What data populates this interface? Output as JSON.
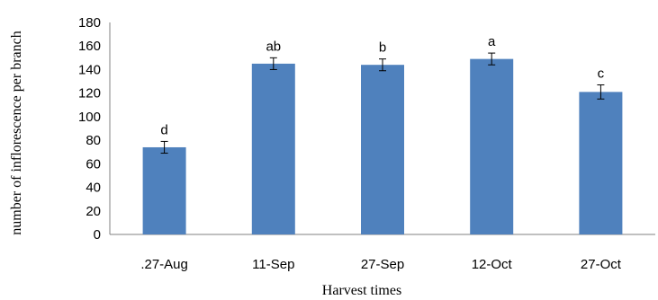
{
  "chart_data": {
    "type": "bar",
    "title": "",
    "xlabel": "Harvest times",
    "ylabel": "number of inflorescence per branch",
    "categories": [
      ".27-Aug",
      "11-Sep",
      "27-Sep",
      "12-Oct",
      "27-Oct"
    ],
    "values": [
      74,
      145,
      144,
      149,
      121
    ],
    "errors": [
      5,
      5,
      5,
      5,
      6
    ],
    "significance_labels": [
      "d",
      "ab",
      "b",
      "a",
      "c"
    ],
    "ylim": [
      0,
      180
    ],
    "yticks": [
      "0",
      "20",
      "40",
      "60",
      "80",
      "100",
      "120",
      "140",
      "160",
      "180"
    ],
    "grid": false,
    "legend": "none",
    "bar_color": "#4F81BD",
    "errorbar_color": "#000000"
  }
}
